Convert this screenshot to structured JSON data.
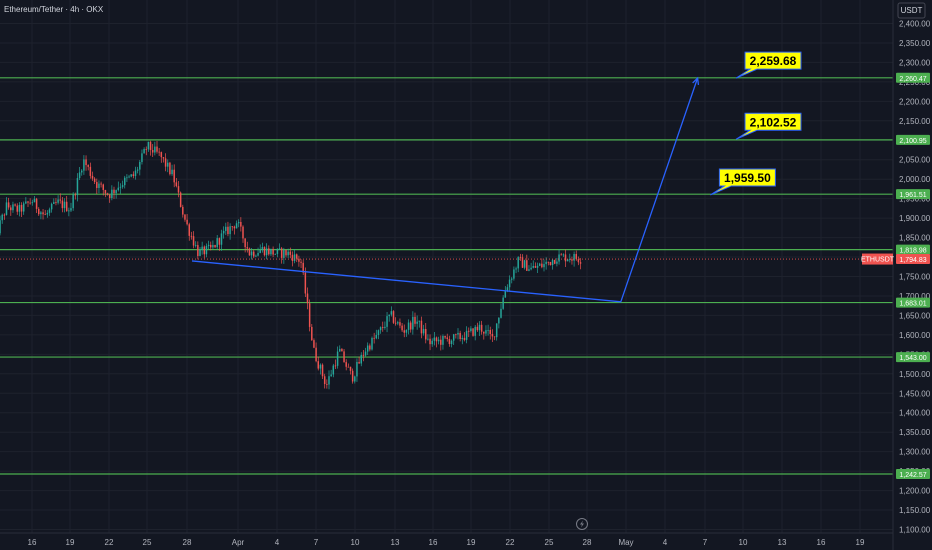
{
  "header": {
    "title": "Ethereum/Tether · 4h · OKX",
    "currency": "USDT"
  },
  "colors": {
    "background": "#131722",
    "up": "#26a69a",
    "down": "#ef5350",
    "level": "#4caf50",
    "projection": "#2962ff",
    "callout": "#ffff00",
    "grid": "#1e222d"
  },
  "icons": {
    "time_icon": "lightning-icon"
  },
  "chart_data": {
    "type": "candlestick",
    "symbol_tag": "ETHUSDT",
    "last_price_label": "1,794.83",
    "last_price": 1794.83,
    "ylim": [
      1080,
      2420
    ],
    "y_ticks": [
      "2,400.00",
      "2,350.00",
      "2,300.00",
      "2,250.00",
      "2,200.00",
      "2,150.00",
      "2,100.00",
      "2,050.00",
      "2,000.00",
      "1,950.00",
      "1,900.00",
      "1,850.00",
      "1,800.00",
      "1,750.00",
      "1,700.00",
      "1,650.00",
      "1,600.00",
      "1,550.00",
      "1,500.00",
      "1,450.00",
      "1,400.00",
      "1,350.00",
      "1,300.00",
      "1,250.00",
      "1,200.00",
      "1,150.00",
      "1,100.00"
    ],
    "x_ticks": [
      "16",
      "19",
      "22",
      "25",
      "28",
      "Apr",
      "4",
      "7",
      "10",
      "13",
      "16",
      "19",
      "22",
      "25",
      "28",
      "May",
      "4",
      "7",
      "10",
      "13",
      "16",
      "19"
    ],
    "levels": [
      {
        "value": 2260.47,
        "label": "2,260.47"
      },
      {
        "value": 2100.95,
        "label": "2,100.95"
      },
      {
        "value": 1961.51,
        "label": "1,961.51"
      },
      {
        "value": 1818.98,
        "label": "1,818.98"
      },
      {
        "value": 1683.01,
        "label": "1,683.01"
      },
      {
        "value": 1543.0,
        "label": "1,543.00"
      },
      {
        "value": 1242.57,
        "label": "1,242.57"
      }
    ],
    "callouts": [
      {
        "value": 2259.68,
        "label": "2,259.68",
        "date": "May 10"
      },
      {
        "value": 2102.52,
        "label": "2,102.52",
        "date": "May 10"
      },
      {
        "value": 1959.5,
        "label": "1,959.50",
        "date": "May 8"
      }
    ],
    "projection": [
      {
        "date": "Mar 28 12:00",
        "price": 1790
      },
      {
        "date": "May 1",
        "price": 1685
      },
      {
        "date": "May 7",
        "price": 2260
      }
    ],
    "price_path": [
      {
        "date": "Mar 13",
        "price": 1840
      },
      {
        "date": "Mar 14",
        "price": 1930
      },
      {
        "date": "Mar 15",
        "price": 1920
      },
      {
        "date": "Mar 16",
        "price": 1945
      },
      {
        "date": "Mar 17",
        "price": 1905
      },
      {
        "date": "Mar 18",
        "price": 1940
      },
      {
        "date": "Mar 19",
        "price": 1925
      },
      {
        "date": "Mar 20",
        "price": 2050
      },
      {
        "date": "Mar 21",
        "price": 1990
      },
      {
        "date": "Mar 22",
        "price": 1960
      },
      {
        "date": "Mar 23",
        "price": 1990
      },
      {
        "date": "Mar 24",
        "price": 2010
      },
      {
        "date": "Mar 25",
        "price": 2085
      },
      {
        "date": "Mar 26",
        "price": 2060
      },
      {
        "date": "Mar 27",
        "price": 2010
      },
      {
        "date": "Mar 28",
        "price": 1890
      },
      {
        "date": "Mar 29",
        "price": 1810
      },
      {
        "date": "Mar 30",
        "price": 1820
      },
      {
        "date": "Mar 31",
        "price": 1860
      },
      {
        "date": "Apr 1",
        "price": 1890
      },
      {
        "date": "Apr 2",
        "price": 1810
      },
      {
        "date": "Apr 3",
        "price": 1820
      },
      {
        "date": "Apr 4",
        "price": 1810
      },
      {
        "date": "Apr 5",
        "price": 1810
      },
      {
        "date": "Apr 6",
        "price": 1790
      },
      {
        "date": "Apr 7",
        "price": 1560
      },
      {
        "date": "Apr 8",
        "price": 1470
      },
      {
        "date": "Apr 9",
        "price": 1560
      },
      {
        "date": "Apr 10",
        "price": 1490
      },
      {
        "date": "Apr 11",
        "price": 1560
      },
      {
        "date": "Apr 12",
        "price": 1600
      },
      {
        "date": "Apr 13",
        "price": 1650
      },
      {
        "date": "Apr 14",
        "price": 1610
      },
      {
        "date": "Apr 15",
        "price": 1640
      },
      {
        "date": "Apr 16",
        "price": 1580
      },
      {
        "date": "Apr 17",
        "price": 1585
      },
      {
        "date": "Apr 18",
        "price": 1590
      },
      {
        "date": "Apr 19",
        "price": 1600
      },
      {
        "date": "Apr 20",
        "price": 1620
      },
      {
        "date": "Apr 21",
        "price": 1590
      },
      {
        "date": "Apr 22",
        "price": 1720
      },
      {
        "date": "Apr 23",
        "price": 1790
      },
      {
        "date": "Apr 24",
        "price": 1770
      },
      {
        "date": "Apr 25",
        "price": 1780
      },
      {
        "date": "Apr 26",
        "price": 1800
      },
      {
        "date": "Apr 27",
        "price": 1800
      },
      {
        "date": "Apr 28",
        "price": 1795
      }
    ]
  }
}
